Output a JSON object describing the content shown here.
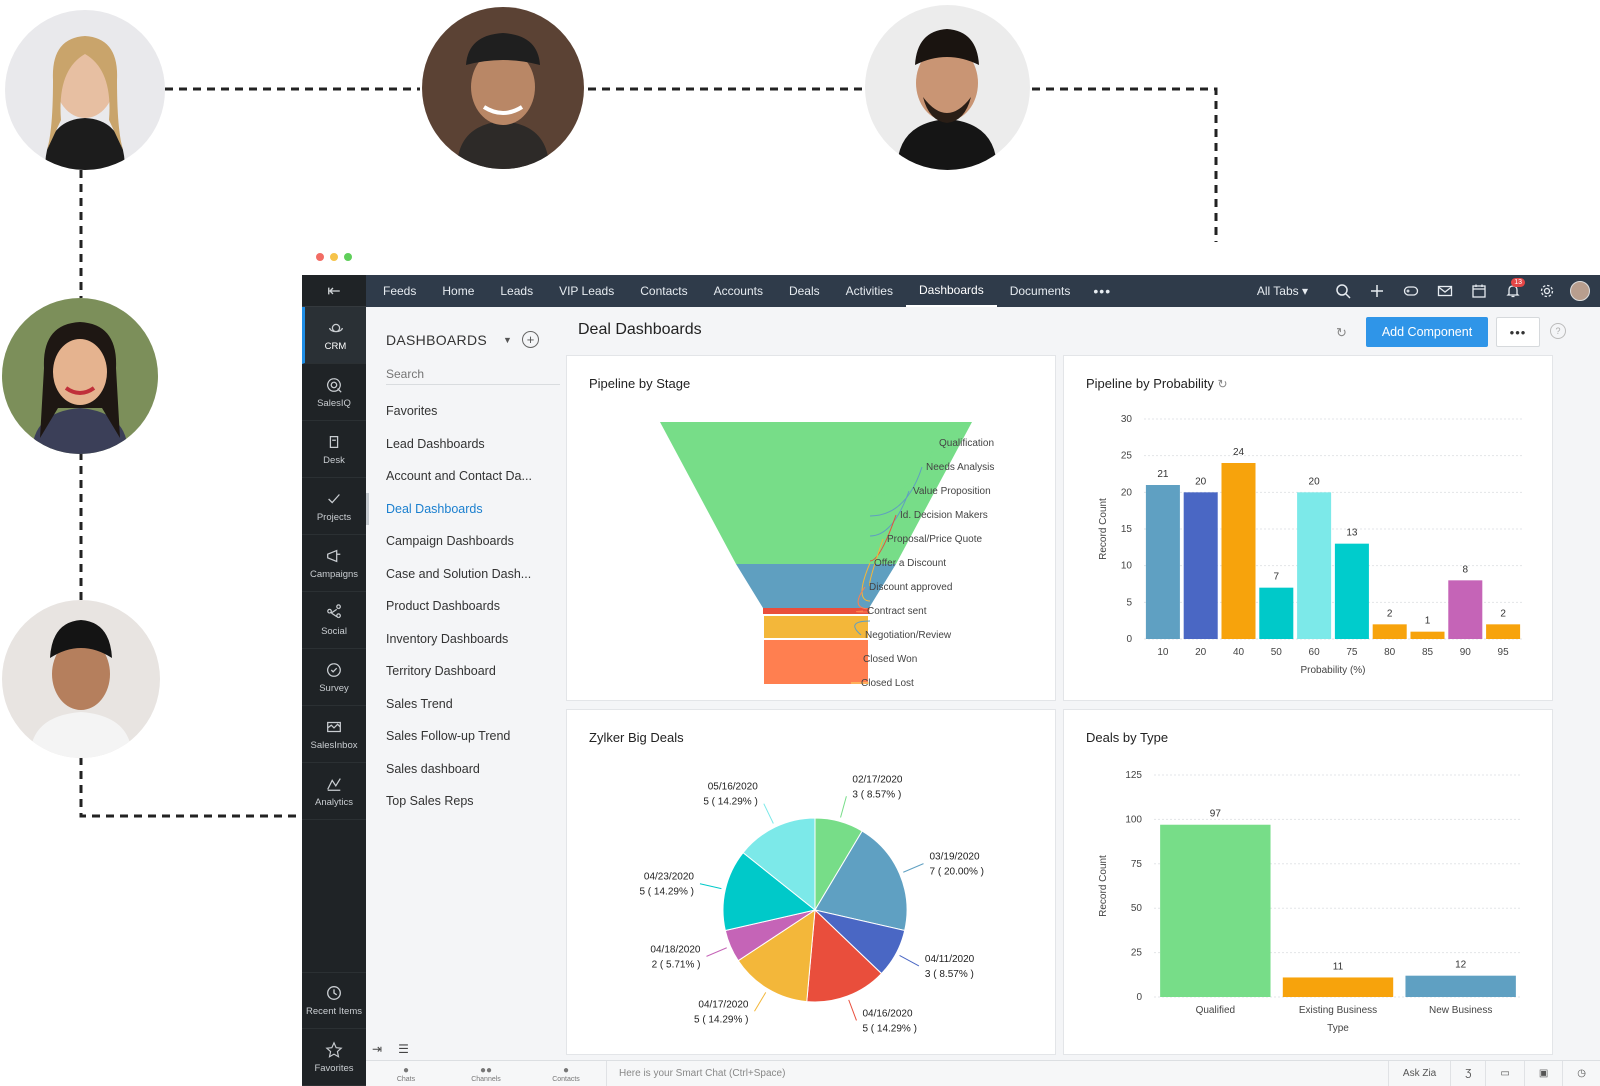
{
  "nav": {
    "tabs": [
      "Feeds",
      "Home",
      "Leads",
      "VIP Leads",
      "Contacts",
      "Accounts",
      "Deals",
      "Activities",
      "Dashboards",
      "Documents"
    ],
    "active_tab": "Dashboards",
    "more": "•••",
    "all_tabs": "All Tabs ▾",
    "notification_count": "13"
  },
  "rail": {
    "items": [
      {
        "label": "CRM",
        "icon": "crm-icon"
      },
      {
        "label": "SalesIQ",
        "icon": "salesiq-icon"
      },
      {
        "label": "Desk",
        "icon": "desk-icon"
      },
      {
        "label": "Projects",
        "icon": "projects-icon"
      },
      {
        "label": "Campaigns",
        "icon": "campaigns-icon"
      },
      {
        "label": "Social",
        "icon": "social-icon"
      },
      {
        "label": "Survey",
        "icon": "survey-icon"
      },
      {
        "label": "SalesInbox",
        "icon": "salesinbox-icon"
      },
      {
        "label": "Analytics",
        "icon": "analytics-icon"
      }
    ],
    "recent": "Recent Items",
    "favorites": "Favorites"
  },
  "left_panel": {
    "heading": "DASHBOARDS",
    "search_placeholder": "Search",
    "items": [
      "Favorites",
      "Lead Dashboards",
      "Account and Contact Da...",
      "Deal Dashboards",
      "Campaign Dashboards",
      "Case and Solution Dash...",
      "Product Dashboards",
      "Inventory Dashboards",
      "Territory Dashboard",
      "Sales Trend",
      "Sales Follow-up Trend",
      "Sales dashboard",
      "Top Sales Reps"
    ],
    "active_item": "Deal Dashboards"
  },
  "main": {
    "title": "Deal Dashboards",
    "add_button": "Add Component",
    "more_button": "•••",
    "help": "?"
  },
  "bottom_bar": {
    "chats": "Chats",
    "channels": "Channels",
    "contacts": "Contacts",
    "chat_placeholder": "Here is your Smart Chat (Ctrl+Space)",
    "ask_zia": "Ask Zia"
  },
  "chart_data": [
    {
      "type": "funnel",
      "title": "Pipeline by Stage",
      "stages": [
        "Qualification",
        "Needs Analysis",
        "Value Proposition",
        "Id. Decision Makers",
        "Proposal/Price Quote",
        "Offer a Discount",
        "Discount approved",
        "Contract sent",
        "Negotiation/Review",
        "Closed Won",
        "Closed Lost"
      ],
      "colors": [
        "#77dd88",
        "#5f9fc0",
        "#e94e3c",
        "#f3b73a",
        "#ff7f50"
      ]
    },
    {
      "type": "bar",
      "title": "Pipeline by Probability",
      "categories": [
        "10",
        "20",
        "40",
        "50",
        "60",
        "75",
        "80",
        "85",
        "90",
        "95"
      ],
      "values": [
        21,
        20,
        24,
        7,
        20,
        13,
        2,
        1,
        8,
        2
      ],
      "colors": [
        "#5fa0c2",
        "#4a67c4",
        "#f7a30c",
        "#00c9c9",
        "#7ce9e9",
        "#00cccc",
        "#f7a30c",
        "#f7a30c",
        "#c564b7",
        "#f7a30c"
      ],
      "xlabel": "Probability (%)",
      "ylabel": "Record Count",
      "yticks": [
        0,
        5,
        10,
        15,
        20,
        25,
        30
      ],
      "ylim": [
        0,
        30
      ]
    },
    {
      "type": "pie",
      "title": "Zylker Big Deals",
      "slices": [
        {
          "label": "02/17/2020",
          "value": 3,
          "pct": "3 ( 8.57% )",
          "color": "#77dd88"
        },
        {
          "label": "03/19/2020",
          "value": 7,
          "pct": "7 ( 20.00% )",
          "color": "#5fa0c2"
        },
        {
          "label": "04/11/2020",
          "value": 3,
          "pct": "3 ( 8.57% )",
          "color": "#4a67c4"
        },
        {
          "label": "04/16/2020",
          "value": 5,
          "pct": "5 ( 14.29% )",
          "color": "#e94e3c"
        },
        {
          "label": "04/17/2020",
          "value": 5,
          "pct": "5 ( 14.29% )",
          "color": "#f3b73a"
        },
        {
          "label": "04/18/2020",
          "value": 2,
          "pct": "2 ( 5.71% )",
          "color": "#c564b7"
        },
        {
          "label": "04/23/2020",
          "value": 5,
          "pct": "5 ( 14.29% )",
          "color": "#00c9c9"
        },
        {
          "label": "05/16/2020",
          "value": 5,
          "pct": "5 ( 14.29% )",
          "color": "#7ce9e9"
        }
      ]
    },
    {
      "type": "bar",
      "title": "Deals by Type",
      "categories": [
        "Qualified",
        "Existing Business",
        "New Business"
      ],
      "values": [
        97,
        11,
        12
      ],
      "colors": [
        "#77dd88",
        "#f7a30c",
        "#5fa0c2"
      ],
      "xlabel": "Type",
      "ylabel": "Record Count",
      "yticks": [
        0,
        25,
        50,
        75,
        100,
        125
      ],
      "ylim": [
        0,
        125
      ]
    }
  ]
}
